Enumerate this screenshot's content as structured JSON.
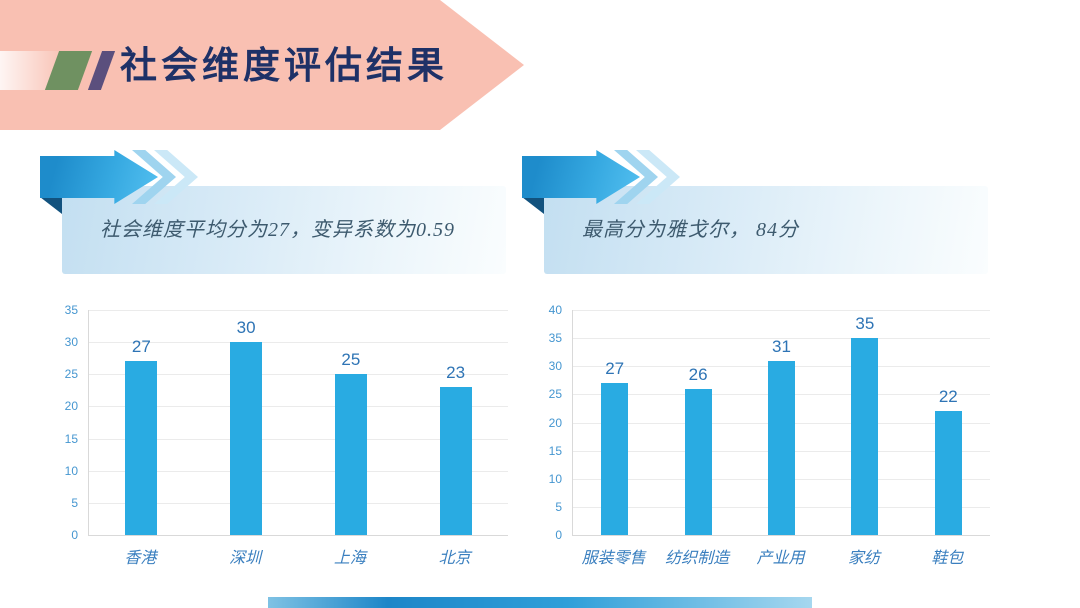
{
  "slide": {
    "title": "社会维度评估结果"
  },
  "callouts": [
    {
      "text": "社会维度平均分为27，变异系数为0.59"
    },
    {
      "text": "最高分为雅戈尔， 84分"
    }
  ],
  "chart_data": [
    {
      "type": "bar",
      "categories": [
        "香港",
        "深圳",
        "上海",
        "北京"
      ],
      "values": [
        27,
        30,
        25,
        23
      ],
      "title": "",
      "xlabel": "",
      "ylabel": "",
      "ylim": [
        0,
        35
      ],
      "ytick_step": 5,
      "grid": true,
      "legend": false,
      "bar_color": "#29ABE2",
      "show_value_labels": true
    },
    {
      "type": "bar",
      "categories": [
        "服装零售",
        "纺织制造",
        "产业用",
        "家纺",
        "鞋包"
      ],
      "values": [
        27,
        26,
        31,
        35,
        22
      ],
      "title": "",
      "xlabel": "",
      "ylabel": "",
      "ylim": [
        0,
        40
      ],
      "ytick_step": 5,
      "grid": true,
      "legend": false,
      "bar_color": "#29ABE2",
      "show_value_labels": true
    }
  ],
  "colors": {
    "header_pink": "#F9C0B2",
    "slash_green": "#6F9161",
    "slash_purple": "#5B4F7D",
    "title_navy": "#1E3167",
    "arrow_blue_dark": "#1E8CCB",
    "arrow_blue_light": "#54C0F0",
    "arrow_fold_navy": "#12527E",
    "banner_light_blue": "#C3DFF1",
    "bar_cyan": "#29ABE2",
    "y_tick_blue": "#4596D0",
    "value_label_blue": "#2E74B5",
    "category_label_blue": "#3A7FBF",
    "callout_text_slate": "#3D5A6E",
    "footer_blue": "#1D86C8"
  }
}
